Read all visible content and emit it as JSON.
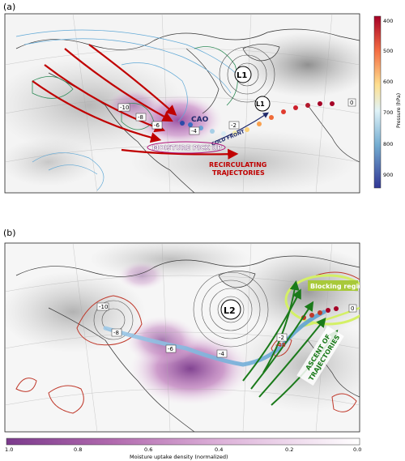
{
  "panel_a": {
    "label": "(a)",
    "annotations": {
      "cao": "CAO",
      "cold_front": "COLD FRONT",
      "moisture_pick_up": "MOISTURE PICK UP",
      "recirculating_line1": "RECIRCULATING",
      "recirculating_line2": "TRAJECTORIES",
      "low_1": "L1",
      "low_1b": "L1"
    },
    "time_labels": [
      "-10",
      "-8",
      "-6",
      "-4",
      "-2",
      "0"
    ],
    "colorbar": {
      "title": "Pressure (hPa)",
      "ticks": [
        "400",
        "500",
        "600",
        "700",
        "800",
        "900"
      ],
      "colors": [
        "#b2182b",
        "#f4a582",
        "#fee090",
        "#e0f3f8",
        "#92c5de",
        "#2166ac"
      ]
    }
  },
  "panel_b": {
    "label": "(b)",
    "annotations": {
      "blocking_region": "Blocking region",
      "ascent_line1": "ASCENT OF",
      "ascent_line2": "TRAJECTORIES",
      "low_2": "L2",
      "value_48": "-48"
    },
    "time_labels": [
      "-10",
      "-8",
      "-6",
      "-4",
      "-2",
      "0"
    ],
    "colorbar": {
      "title": "Moisture uptake density (normalized)",
      "ticks": [
        "1.0",
        "0.8",
        "0.6",
        "0.4",
        "0.2",
        "0.0"
      ],
      "colors": [
        "#7b3a8c",
        "#a45aa6",
        "#c786c2",
        "#ddb1d9",
        "#eed6ec",
        "#f8f0f7"
      ]
    }
  }
}
